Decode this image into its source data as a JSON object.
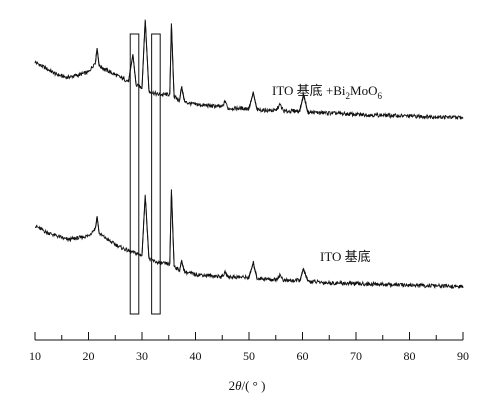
{
  "chart_data": {
    "type": "line",
    "title": "",
    "xlabel": "2θ/(°)",
    "ylabel": "",
    "xlim": [
      10,
      90
    ],
    "x_ticks": [
      "10",
      "20",
      "30",
      "40",
      "50",
      "60",
      "70",
      "80",
      "90"
    ],
    "grid": false,
    "legend": "none",
    "series": [
      {
        "name": "ITO 基底 +Bi2MoO6",
        "points": [
          [
            10,
            0.0
          ],
          [
            12,
            -0.08
          ],
          [
            14,
            -0.16
          ],
          [
            16,
            -0.2
          ],
          [
            18,
            -0.17
          ],
          [
            20,
            -0.13
          ],
          [
            21.3,
            0.0
          ],
          [
            21.6,
            0.18
          ],
          [
            22,
            -0.05
          ],
          [
            24,
            -0.13
          ],
          [
            26,
            -0.2
          ],
          [
            27.5,
            -0.25
          ],
          [
            28.3,
            0.1
          ],
          [
            28.9,
            -0.3
          ],
          [
            30,
            -0.33
          ],
          [
            30.6,
            0.55
          ],
          [
            31.3,
            -0.38
          ],
          [
            33,
            -0.42
          ],
          [
            35.2,
            -0.42
          ],
          [
            35.5,
            0.5
          ],
          [
            36,
            -0.45
          ],
          [
            37,
            -0.5
          ],
          [
            37.4,
            -0.32
          ],
          [
            38,
            -0.52
          ],
          [
            40,
            -0.55
          ],
          [
            45,
            -0.58
          ],
          [
            45.6,
            -0.5
          ],
          [
            46,
            -0.6
          ],
          [
            50,
            -0.6
          ],
          [
            50.8,
            -0.4
          ],
          [
            51.5,
            -0.62
          ],
          [
            55,
            -0.63
          ],
          [
            55.8,
            -0.55
          ],
          [
            56.5,
            -0.64
          ],
          [
            59.5,
            -0.63
          ],
          [
            60.2,
            -0.42
          ],
          [
            61,
            -0.65
          ],
          [
            65,
            -0.66
          ],
          [
            70,
            -0.68
          ],
          [
            75,
            -0.69
          ],
          [
            80,
            -0.7
          ],
          [
            85,
            -0.71
          ],
          [
            90,
            -0.72
          ]
        ]
      },
      {
        "name": "ITO 基底",
        "points": [
          [
            10,
            -2.12
          ],
          [
            12,
            -2.2
          ],
          [
            14,
            -2.25
          ],
          [
            16,
            -2.3
          ],
          [
            18,
            -2.28
          ],
          [
            20,
            -2.25
          ],
          [
            21.3,
            -2.15
          ],
          [
            21.6,
            -2.0
          ],
          [
            22,
            -2.22
          ],
          [
            24,
            -2.32
          ],
          [
            26,
            -2.4
          ],
          [
            28,
            -2.46
          ],
          [
            30,
            -2.5
          ],
          [
            30.6,
            -1.72
          ],
          [
            31.3,
            -2.55
          ],
          [
            33,
            -2.6
          ],
          [
            35.2,
            -2.62
          ],
          [
            35.5,
            -1.65
          ],
          [
            36,
            -2.64
          ],
          [
            37,
            -2.7
          ],
          [
            37.4,
            -2.58
          ],
          [
            38,
            -2.72
          ],
          [
            40,
            -2.75
          ],
          [
            45,
            -2.78
          ],
          [
            45.6,
            -2.72
          ],
          [
            46,
            -2.78
          ],
          [
            50,
            -2.79
          ],
          [
            50.8,
            -2.6
          ],
          [
            51.5,
            -2.8
          ],
          [
            55,
            -2.82
          ],
          [
            55.8,
            -2.76
          ],
          [
            56.5,
            -2.83
          ],
          [
            59.5,
            -2.83
          ],
          [
            60.2,
            -2.68
          ],
          [
            61,
            -2.84
          ],
          [
            65,
            -2.86
          ],
          [
            70,
            -2.87
          ],
          [
            75,
            -2.88
          ],
          [
            80,
            -2.89
          ],
          [
            85,
            -2.9
          ],
          [
            90,
            -2.91
          ]
        ]
      }
    ],
    "highlight_boxes": [
      {
        "x_range": [
          27.8,
          29.4
        ]
      },
      {
        "x_range": [
          31.8,
          33.4
        ]
      }
    ],
    "ylim": [
      -3.6,
      0.7
    ]
  },
  "colors": {
    "line": "#111111",
    "axis": "#111111"
  }
}
